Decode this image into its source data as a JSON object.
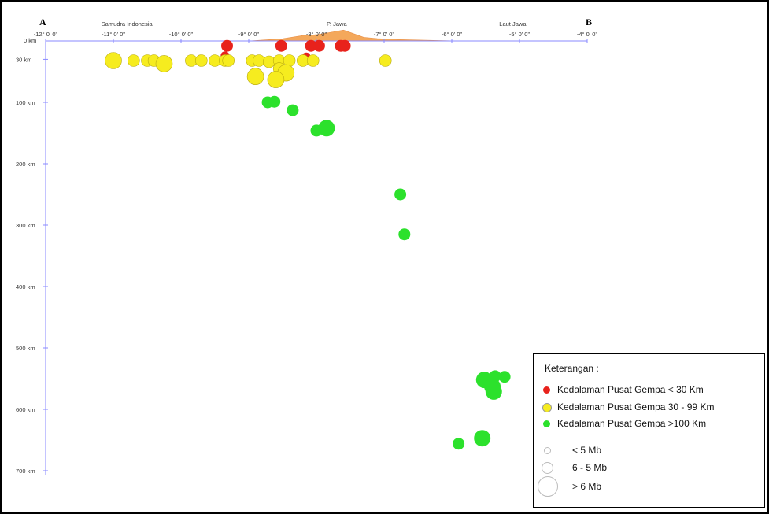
{
  "chart_data": {
    "type": "scatter",
    "endpoints": {
      "start": "A",
      "end": "B"
    },
    "places": [
      {
        "name": "Samudra Indonesia",
        "lon": -10.8
      },
      {
        "name": "P. Jawa",
        "lon": -7.7
      },
      {
        "name": "Laut Jawa",
        "lon": -5.1
      }
    ],
    "x_ticks": [
      {
        "lon": -12,
        "label": "-12° 0' 0\""
      },
      {
        "lon": -11,
        "label": "-11° 0' 0\""
      },
      {
        "lon": -10,
        "label": "-10° 0' 0\""
      },
      {
        "lon": -9,
        "label": "-9° 0' 0\""
      },
      {
        "lon": -8,
        "label": "-8° 0' 0\""
      },
      {
        "lon": -7,
        "label": "-7° 0' 0\""
      },
      {
        "lon": -6,
        "label": "-6° 0' 0\""
      },
      {
        "lon": -5,
        "label": "-5° 0' 0\""
      },
      {
        "lon": -4,
        "label": "-4° 0' 0\""
      }
    ],
    "y_ticks": [
      {
        "depth": 0,
        "label": "0 km"
      },
      {
        "depth": 30,
        "label": "30 km"
      },
      {
        "depth": 100,
        "label": "100 km"
      },
      {
        "depth": 200,
        "label": "200 km"
      },
      {
        "depth": 300,
        "label": "300 km"
      },
      {
        "depth": 400,
        "label": "400 km"
      },
      {
        "depth": 500,
        "label": "500 km"
      },
      {
        "depth": 600,
        "label": "600 km"
      },
      {
        "depth": 700,
        "label": "700 km"
      }
    ],
    "xlim": [
      -12,
      -4
    ],
    "ylim": [
      0,
      700
    ],
    "topography": [
      {
        "lon": -9.0,
        "h": 0
      },
      {
        "lon": -8.8,
        "h": 0.5
      },
      {
        "lon": -8.5,
        "h": 1.2
      },
      {
        "lon": -8.2,
        "h": 3
      },
      {
        "lon": -8.0,
        "h": 3.5
      },
      {
        "lon": -7.9,
        "h": 4
      },
      {
        "lon": -7.75,
        "h": 5
      },
      {
        "lon": -7.6,
        "h": 6
      },
      {
        "lon": -7.45,
        "h": 4
      },
      {
        "lon": -7.3,
        "h": 2
      },
      {
        "lon": -7.1,
        "h": 1.3
      },
      {
        "lon": -6.8,
        "h": 0.8
      },
      {
        "lon": -6.4,
        "h": 0.4
      },
      {
        "lon": -5.9,
        "h": 0
      }
    ],
    "series": [
      {
        "name": "Kedalaman Pusat Gempa < 30 Km",
        "color": "#e8221c",
        "points": [
          {
            "lon": -9.32,
            "depth": 8,
            "size": 2
          },
          {
            "lon": -8.52,
            "depth": 8,
            "size": 2
          },
          {
            "lon": -8.08,
            "depth": 8,
            "size": 2
          },
          {
            "lon": -7.96,
            "depth": 8,
            "size": 2
          },
          {
            "lon": -7.64,
            "depth": 8,
            "size": 2
          },
          {
            "lon": -7.58,
            "depth": 8,
            "size": 2
          },
          {
            "lon": -8.15,
            "depth": 26,
            "size": 1
          },
          {
            "lon": -9.35,
            "depth": 24,
            "size": 1
          }
        ]
      },
      {
        "name": "Kedalaman Pusat Gempa 30 - 99 Km",
        "color": "#f6ec1f",
        "points": [
          {
            "lon": -11.0,
            "depth": 32,
            "size": 3
          },
          {
            "lon": -10.7,
            "depth": 32,
            "size": 2
          },
          {
            "lon": -10.5,
            "depth": 32,
            "size": 2
          },
          {
            "lon": -10.4,
            "depth": 32,
            "size": 2
          },
          {
            "lon": -10.25,
            "depth": 37,
            "size": 3
          },
          {
            "lon": -9.85,
            "depth": 32,
            "size": 2
          },
          {
            "lon": -9.7,
            "depth": 32,
            "size": 2
          },
          {
            "lon": -9.5,
            "depth": 32,
            "size": 2
          },
          {
            "lon": -9.35,
            "depth": 32,
            "size": 2
          },
          {
            "lon": -9.3,
            "depth": 32,
            "size": 2
          },
          {
            "lon": -8.95,
            "depth": 32,
            "size": 2
          },
          {
            "lon": -8.85,
            "depth": 32,
            "size": 2
          },
          {
            "lon": -8.7,
            "depth": 34,
            "size": 2
          },
          {
            "lon": -8.55,
            "depth": 32,
            "size": 2
          },
          {
            "lon": -8.4,
            "depth": 32,
            "size": 2
          },
          {
            "lon": -8.2,
            "depth": 32,
            "size": 2
          },
          {
            "lon": -8.05,
            "depth": 32,
            "size": 2
          },
          {
            "lon": -8.55,
            "depth": 45,
            "size": 2
          },
          {
            "lon": -8.45,
            "depth": 52,
            "size": 3
          },
          {
            "lon": -8.9,
            "depth": 58,
            "size": 3
          },
          {
            "lon": -8.6,
            "depth": 63,
            "size": 3
          },
          {
            "lon": -6.98,
            "depth": 32,
            "size": 2
          }
        ]
      },
      {
        "name": "Kedalaman Pusat Gempa  >100 Km",
        "color": "#2ce12c",
        "points": [
          {
            "lon": -8.72,
            "depth": 100,
            "size": 2
          },
          {
            "lon": -8.62,
            "depth": 99,
            "size": 2
          },
          {
            "lon": -8.35,
            "depth": 113,
            "size": 2
          },
          {
            "lon": -8.0,
            "depth": 146,
            "size": 2
          },
          {
            "lon": -7.85,
            "depth": 142,
            "size": 3
          },
          {
            "lon": -6.76,
            "depth": 250,
            "size": 2
          },
          {
            "lon": -6.7,
            "depth": 315,
            "size": 2
          },
          {
            "lon": -5.9,
            "depth": 656,
            "size": 2
          },
          {
            "lon": -5.52,
            "depth": 552,
            "size": 3
          },
          {
            "lon": -5.36,
            "depth": 546,
            "size": 2
          },
          {
            "lon": -5.22,
            "depth": 547,
            "size": 2
          },
          {
            "lon": -5.4,
            "depth": 563,
            "size": 3
          },
          {
            "lon": -5.38,
            "depth": 571,
            "size": 3
          },
          {
            "lon": -5.55,
            "depth": 647,
            "size": 3
          }
        ]
      }
    ],
    "legend": {
      "title": "Keterangan :",
      "placement": "bottom-right",
      "size_classes": [
        "< 5 Mb",
        "6 - 5 Mb",
        "> 6 Mb"
      ]
    }
  }
}
